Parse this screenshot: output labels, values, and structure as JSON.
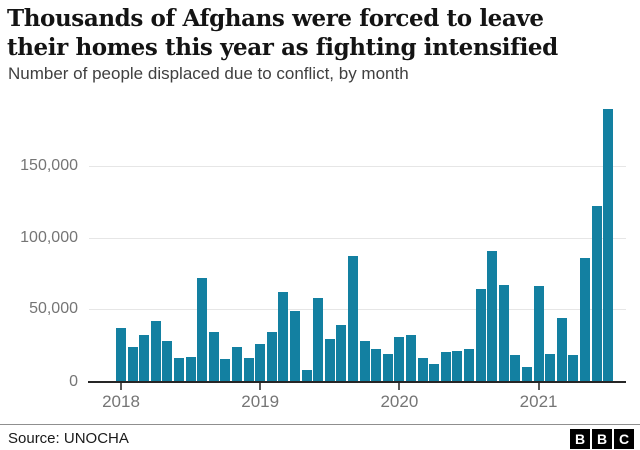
{
  "header": {
    "title_line1": "Thousands of Afghans were forced to leave",
    "title_line2": "their homes this year as fighting intensified",
    "subtitle": "Number of people displaced due to conflict, by month"
  },
  "chart_data": {
    "type": "bar",
    "title": "Thousands of Afghans were forced to leave their homes this year as fighting intensified",
    "subtitle": "Number of people displaced due to conflict, by month",
    "x": [
      "Jan 2018",
      "Feb 2018",
      "Mar 2018",
      "Apr 2018",
      "May 2018",
      "Jun 2018",
      "Jul 2018",
      "Aug 2018",
      "Sep 2018",
      "Oct 2018",
      "Nov 2018",
      "Dec 2018",
      "Jan 2019",
      "Feb 2019",
      "Mar 2019",
      "Apr 2019",
      "May 2019",
      "Jun 2019",
      "Jul 2019",
      "Aug 2019",
      "Sep 2019",
      "Oct 2019",
      "Nov 2019",
      "Dec 2019",
      "Jan 2020",
      "Feb 2020",
      "Mar 2020",
      "Apr 2020",
      "May 2020",
      "Jun 2020",
      "Jul 2020",
      "Aug 2020",
      "Sep 2020",
      "Oct 2020",
      "Nov 2020",
      "Dec 2020",
      "Jan 2021",
      "Feb 2021",
      "Mar 2021",
      "Apr 2021",
      "May 2021",
      "Jun 2021",
      "Jul 2021"
    ],
    "values": [
      37000,
      24000,
      32000,
      42000,
      28000,
      16000,
      17000,
      72000,
      34000,
      15000,
      24000,
      16000,
      26000,
      34000,
      62000,
      49000,
      8000,
      58000,
      29000,
      39000,
      87000,
      28000,
      22000,
      19000,
      31000,
      32000,
      16000,
      12000,
      20000,
      21000,
      22000,
      64000,
      91000,
      67000,
      18000,
      10000,
      66000,
      19000,
      44000,
      18000,
      86000,
      122000,
      190000
    ],
    "ylim": [
      0,
      195000
    ],
    "yticks": [
      0,
      50000,
      100000,
      150000
    ],
    "ytick_labels": [
      "0",
      "50,000",
      "100,000",
      "150,000"
    ],
    "xtick_labels": [
      "2018",
      "2019",
      "2020",
      "2021"
    ],
    "bar_color": "#1380A1",
    "grid": true,
    "legend": false
  },
  "footer": {
    "source": "Source: UNOCHA",
    "logo_letters": [
      "B",
      "B",
      "C"
    ]
  },
  "colors": {
    "bar": "#1380A1",
    "gridline": "#e6e6e6",
    "axis": "#262626",
    "tick_label": "#757575",
    "title": "#141414",
    "subtitle": "#404040"
  }
}
